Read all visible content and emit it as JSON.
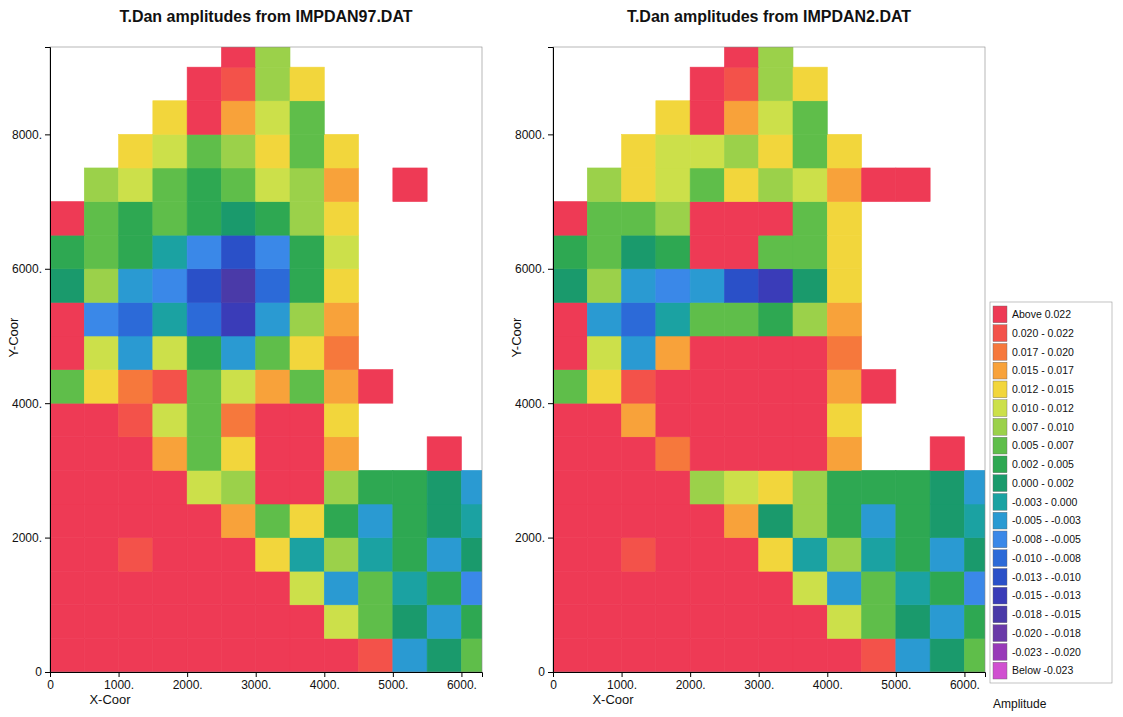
{
  "chart_data": [
    {
      "type": "heatmap",
      "title": "T.Dan amplitudes from IMPDAN97.DAT",
      "x_label": "X-Coor",
      "y_label": "Y-Coor",
      "xlim": [
        0,
        6300
      ],
      "ylim": [
        0,
        9300
      ],
      "xticks": [
        0,
        {
          "value": 1000,
          "label": "1000."
        },
        {
          "value": 2000,
          "label": "2000."
        },
        {
          "value": 3000,
          "label": "3000."
        },
        {
          "value": 4000,
          "label": "4000."
        },
        {
          "value": 5000,
          "label": "5000."
        },
        {
          "value": 6000,
          "label": "6000."
        }
      ],
      "yticks": [
        0,
        {
          "value": 2000,
          "label": "2000."
        },
        {
          "value": 4000,
          "label": "4000."
        },
        {
          "value": 6000,
          "label": "6000."
        },
        {
          "value": 8000,
          "label": "8000."
        }
      ],
      "x_edges": [
        0,
        500,
        1000,
        1500,
        2000,
        2500,
        3000,
        3500,
        4000,
        4500,
        5000,
        5500,
        6000,
        6500
      ],
      "y_edges": [
        0,
        500,
        1000,
        1500,
        2000,
        2500,
        3000,
        3500,
        4000,
        4500,
        5000,
        5500,
        6000,
        6500,
        7000,
        7500,
        8000,
        8500,
        9000,
        9500
      ],
      "cells": [
        [
          0.03,
          0.03,
          0.03,
          0.03,
          0.03,
          0.03,
          0.03,
          0.03,
          0.03,
          0.02,
          -0.005,
          0.0,
          0.006
        ],
        [
          0.03,
          0.03,
          0.03,
          0.03,
          0.03,
          0.03,
          0.03,
          0.03,
          0.01,
          0.006,
          0.0,
          -0.004,
          0.004
        ],
        [
          0.03,
          0.03,
          0.03,
          0.025,
          0.03,
          0.03,
          0.025,
          0.01,
          -0.005,
          0.005,
          -0.002,
          0.002,
          -0.006
        ],
        [
          0.03,
          0.03,
          0.02,
          0.025,
          0.03,
          0.03,
          0.012,
          -0.003,
          0.008,
          -0.003,
          0.004,
          -0.005,
          0.0
        ],
        [
          0.03,
          0.03,
          0.025,
          0.03,
          0.03,
          0.015,
          0.005,
          0.012,
          0.002,
          -0.005,
          0.002,
          0.0,
          -0.003
        ],
        [
          0.03,
          0.03,
          0.03,
          0.03,
          0.01,
          0.008,
          0.03,
          0.025,
          0.008,
          0.004,
          0.002,
          0.0,
          -0.005
        ],
        [
          0.03,
          0.03,
          0.03,
          0.015,
          0.005,
          0.012,
          0.03,
          0.03,
          0.015,
          null,
          null,
          0.03,
          null
        ],
        [
          0.03,
          0.03,
          0.02,
          0.01,
          0.005,
          0.018,
          0.03,
          0.025,
          0.012,
          null,
          null,
          null,
          null
        ],
        [
          0.005,
          0.012,
          0.018,
          0.02,
          0.006,
          0.01,
          0.015,
          0.005,
          0.015,
          0.03,
          null,
          null,
          null
        ],
        [
          0.03,
          0.01,
          -0.005,
          0.01,
          0.002,
          -0.005,
          0.005,
          0.012,
          0.018,
          null,
          null,
          null,
          null
        ],
        [
          0.03,
          -0.008,
          -0.01,
          -0.003,
          -0.01,
          -0.015,
          -0.005,
          0.008,
          0.015,
          null,
          null,
          null,
          null
        ],
        [
          0.0,
          0.008,
          -0.005,
          -0.008,
          -0.012,
          -0.018,
          -0.01,
          0.004,
          0.012,
          null,
          null,
          null,
          null
        ],
        [
          0.004,
          0.006,
          0.002,
          -0.003,
          -0.008,
          -0.012,
          -0.008,
          0.002,
          0.01,
          null,
          null,
          null,
          null
        ],
        [
          0.03,
          0.006,
          0.004,
          0.005,
          0.002,
          0.0,
          0.004,
          0.008,
          0.012,
          null,
          null,
          null,
          null
        ],
        [
          null,
          0.008,
          0.01,
          0.006,
          0.004,
          0.006,
          0.01,
          0.008,
          0.015,
          null,
          0.03,
          null,
          null
        ],
        [
          null,
          null,
          0.012,
          0.01,
          0.005,
          0.008,
          0.012,
          0.006,
          0.012,
          null,
          null,
          null,
          null
        ],
        [
          null,
          null,
          null,
          0.012,
          0.03,
          0.015,
          0.01,
          0.006,
          null,
          null,
          null,
          null,
          null
        ],
        [
          null,
          null,
          null,
          null,
          0.03,
          0.02,
          0.008,
          0.012,
          null,
          null,
          null,
          null,
          null
        ],
        [
          null,
          null,
          null,
          null,
          null,
          0.03,
          0.008,
          null,
          null,
          null,
          null,
          null,
          null
        ]
      ]
    },
    {
      "type": "heatmap",
      "title": "T.Dan amplitudes from IMPDAN2.DAT",
      "x_label": "X-Coor",
      "y_label": "Y-Coor",
      "xlim": [
        0,
        6300
      ],
      "ylim": [
        0,
        9300
      ],
      "xticks": [
        0,
        {
          "value": 1000,
          "label": "1000."
        },
        {
          "value": 2000,
          "label": "2000."
        },
        {
          "value": 3000,
          "label": "3000."
        },
        {
          "value": 4000,
          "label": "4000."
        },
        {
          "value": 5000,
          "label": "5000."
        },
        {
          "value": 6000,
          "label": "6000."
        }
      ],
      "yticks": [
        0,
        {
          "value": 2000,
          "label": "2000."
        },
        {
          "value": 4000,
          "label": "4000."
        },
        {
          "value": 6000,
          "label": "6000."
        },
        {
          "value": 8000,
          "label": "8000."
        }
      ],
      "x_edges": [
        0,
        500,
        1000,
        1500,
        2000,
        2500,
        3000,
        3500,
        4000,
        4500,
        5000,
        5500,
        6000,
        6500
      ],
      "y_edges": [
        0,
        500,
        1000,
        1500,
        2000,
        2500,
        3000,
        3500,
        4000,
        4500,
        5000,
        5500,
        6000,
        6500,
        7000,
        7500,
        8000,
        8500,
        9000,
        9500
      ],
      "cells": [
        [
          0.03,
          0.03,
          0.03,
          0.03,
          0.03,
          0.03,
          0.03,
          0.03,
          0.03,
          0.02,
          -0.005,
          0.0,
          0.006
        ],
        [
          0.03,
          0.03,
          0.03,
          0.03,
          0.03,
          0.03,
          0.03,
          0.03,
          0.01,
          0.006,
          0.0,
          -0.004,
          0.004
        ],
        [
          0.03,
          0.03,
          0.03,
          0.025,
          0.03,
          0.03,
          0.025,
          0.01,
          -0.005,
          0.005,
          -0.002,
          0.002,
          -0.006
        ],
        [
          0.03,
          0.03,
          0.02,
          0.025,
          0.03,
          0.03,
          0.012,
          -0.003,
          0.008,
          -0.003,
          0.004,
          -0.005,
          0.0
        ],
        [
          0.03,
          0.03,
          0.025,
          0.03,
          0.03,
          0.015,
          0.0,
          0.008,
          0.002,
          -0.005,
          0.002,
          0.0,
          -0.003
        ],
        [
          0.03,
          0.03,
          0.03,
          0.03,
          0.008,
          0.01,
          0.012,
          0.008,
          0.004,
          0.004,
          0.002,
          0.0,
          -0.005
        ],
        [
          0.03,
          0.03,
          0.03,
          0.018,
          0.03,
          0.03,
          0.03,
          0.03,
          0.015,
          null,
          null,
          0.03,
          null
        ],
        [
          0.03,
          0.03,
          0.015,
          0.03,
          0.03,
          0.03,
          0.03,
          0.03,
          0.012,
          null,
          null,
          null,
          null
        ],
        [
          0.005,
          0.012,
          0.02,
          0.03,
          0.03,
          0.03,
          0.03,
          0.03,
          0.015,
          0.03,
          null,
          null,
          null
        ],
        [
          0.03,
          0.01,
          -0.005,
          0.015,
          0.03,
          0.03,
          0.03,
          0.03,
          0.018,
          null,
          null,
          null,
          null
        ],
        [
          0.03,
          -0.005,
          -0.01,
          -0.003,
          0.005,
          0.005,
          0.004,
          0.008,
          0.015,
          null,
          null,
          null,
          null
        ],
        [
          0.0,
          0.008,
          -0.005,
          -0.008,
          -0.005,
          -0.012,
          -0.015,
          0.0,
          0.012,
          null,
          null,
          null,
          null
        ],
        [
          0.004,
          0.006,
          0.0,
          0.004,
          0.03,
          0.03,
          0.006,
          0.005,
          0.012,
          null,
          null,
          null,
          null
        ],
        [
          0.03,
          0.005,
          0.006,
          0.008,
          0.03,
          0.03,
          0.03,
          0.006,
          0.012,
          null,
          null,
          null,
          null
        ],
        [
          null,
          0.008,
          0.012,
          0.01,
          0.006,
          0.012,
          0.008,
          0.01,
          0.015,
          0.03,
          0.03,
          null,
          null
        ],
        [
          null,
          null,
          0.012,
          0.01,
          0.01,
          0.008,
          0.012,
          0.006,
          0.012,
          null,
          null,
          null,
          null
        ],
        [
          null,
          null,
          null,
          0.012,
          0.03,
          0.015,
          0.01,
          0.006,
          null,
          null,
          null,
          null,
          null
        ],
        [
          null,
          null,
          null,
          null,
          0.03,
          0.02,
          0.008,
          0.012,
          null,
          null,
          null,
          null,
          null
        ],
        [
          null,
          null,
          null,
          null,
          null,
          0.03,
          0.008,
          null,
          null,
          null,
          null,
          null,
          null
        ]
      ],
      "colorbar": {
        "title": "Amplitude",
        "bins": [
          {
            "label": "Above 0.022",
            "min": 0.022,
            "max": null,
            "color": "#ee3a55"
          },
          {
            "label": "0.020 - 0.022",
            "min": 0.02,
            "max": 0.022,
            "color": "#f3524a"
          },
          {
            "label": "0.017 - 0.020",
            "min": 0.017,
            "max": 0.02,
            "color": "#f6783c"
          },
          {
            "label": "0.015 - 0.017",
            "min": 0.015,
            "max": 0.017,
            "color": "#f8a23a"
          },
          {
            "label": "0.012 - 0.015",
            "min": 0.012,
            "max": 0.015,
            "color": "#f2d63c"
          },
          {
            "label": "0.010 - 0.012",
            "min": 0.01,
            "max": 0.012,
            "color": "#cce04a"
          },
          {
            "label": "0.007 - 0.010",
            "min": 0.007,
            "max": 0.01,
            "color": "#9bd14a"
          },
          {
            "label": "0.005 - 0.007",
            "min": 0.005,
            "max": 0.007,
            "color": "#5fbe4a"
          },
          {
            "label": "0.002 - 0.005",
            "min": 0.002,
            "max": 0.005,
            "color": "#2ea852"
          },
          {
            "label": "0.000 - 0.002",
            "min": 0.0,
            "max": 0.002,
            "color": "#1a9a6c"
          },
          {
            "label": "-0.003 - 0.000",
            "min": -0.003,
            "max": 0.0,
            "color": "#1ba2a2"
          },
          {
            "label": "-0.005 - -0.003",
            "min": -0.005,
            "max": -0.003,
            "color": "#2a9ad2"
          },
          {
            "label": "-0.008 - -0.005",
            "min": -0.008,
            "max": -0.005,
            "color": "#3a88e8"
          },
          {
            "label": "-0.010 - -0.008",
            "min": -0.01,
            "max": -0.008,
            "color": "#2c6ad8"
          },
          {
            "label": "-0.013 - -0.010",
            "min": -0.013,
            "max": -0.01,
            "color": "#2a50c8"
          },
          {
            "label": "-0.015 - -0.013",
            "min": -0.015,
            "max": -0.013,
            "color": "#3a3cb8"
          },
          {
            "label": "-0.018 - -0.015",
            "min": -0.018,
            "max": -0.015,
            "color": "#4a3aa8"
          },
          {
            "label": "-0.020 - -0.018",
            "min": -0.02,
            "max": -0.018,
            "color": "#6a3aa8"
          },
          {
            "label": "-0.023 - -0.020",
            "min": -0.023,
            "max": -0.02,
            "color": "#983ab8"
          },
          {
            "label": "Below -0.023",
            "min": null,
            "max": -0.023,
            "color": "#d050d0"
          }
        ]
      }
    }
  ]
}
